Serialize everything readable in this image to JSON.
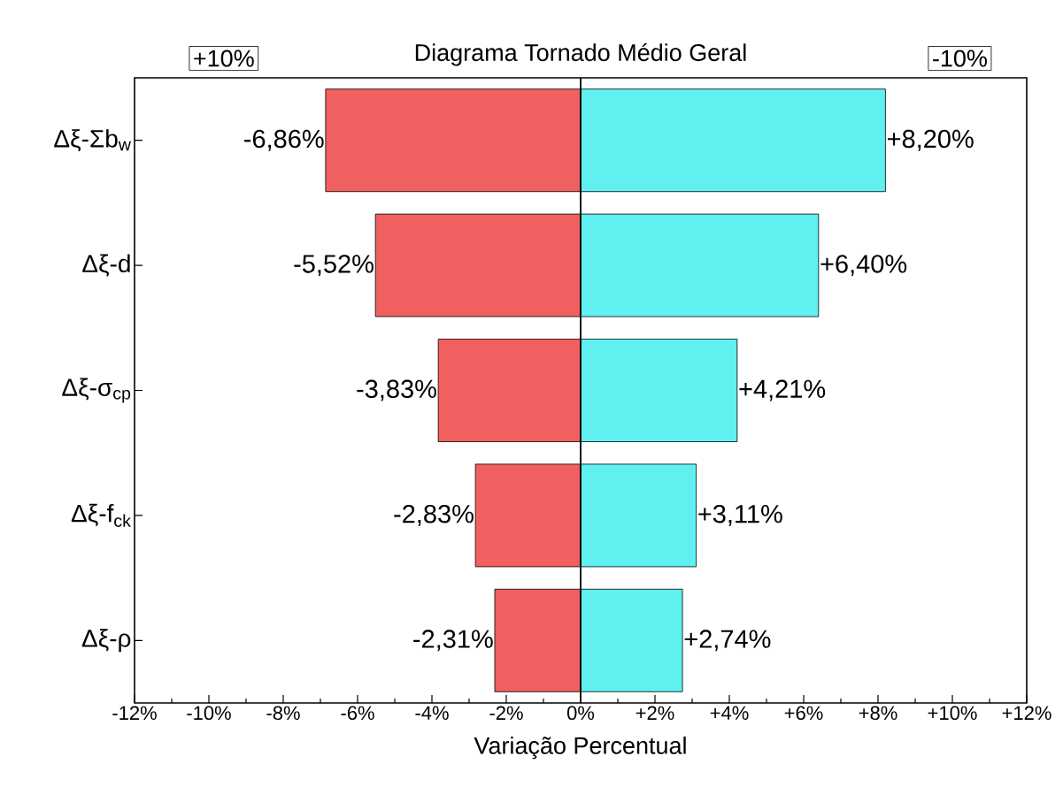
{
  "chart_data": {
    "type": "bar",
    "orientation": "horizontal",
    "title": "Diagrama Tornado Médio Geral",
    "xlabel": "Variação Percentual",
    "annotations": [
      "+10%",
      "-10%"
    ],
    "stacked": true,
    "categories": [
      "Δξ-Σb$_{w}$",
      "Δξ-d",
      "Δξ-σ$_{cp}$",
      "Δξ-f$_{ck}$",
      "Δξ-ρ"
    ],
    "series": [
      {
        "color": "#f06060",
        "values": [
          -6.86,
          -5.52,
          -3.83,
          -2.83,
          -2.31
        ],
        "value_labels": [
          "-6,86%",
          "-5,52%",
          "-3,83%",
          "-2,83%",
          "-2,31%"
        ]
      },
      {
        "color": "#60f0f0",
        "values": [
          8.2,
          6.4,
          4.21,
          3.11,
          2.74
        ],
        "value_labels": [
          "+8,20%",
          "+6,40%",
          "+4,21%",
          "+3,11%",
          "+2,74%"
        ]
      }
    ],
    "xlim": [
      -12,
      12
    ],
    "xticks": [
      {
        "value": -12,
        "label": "-12%"
      },
      {
        "value": -10,
        "label": "-10%"
      },
      {
        "value": -8,
        "label": "-8%"
      },
      {
        "value": -6,
        "label": "-6%"
      },
      {
        "value": -4,
        "label": "-4%"
      },
      {
        "value": -2,
        "label": "-2%"
      },
      {
        "value": 0,
        "label": "0%"
      },
      {
        "value": 2,
        "label": "+2%"
      },
      {
        "value": 4,
        "label": "+4%"
      },
      {
        "value": 6,
        "label": "+6%"
      },
      {
        "value": 8,
        "label": "+8%"
      },
      {
        "value": 10,
        "label": "+10%"
      },
      {
        "value": 12,
        "label": "+12%"
      }
    ],
    "ref_lines": [
      {
        "axis": "x",
        "value": 0,
        "color": "#000000"
      }
    ]
  }
}
